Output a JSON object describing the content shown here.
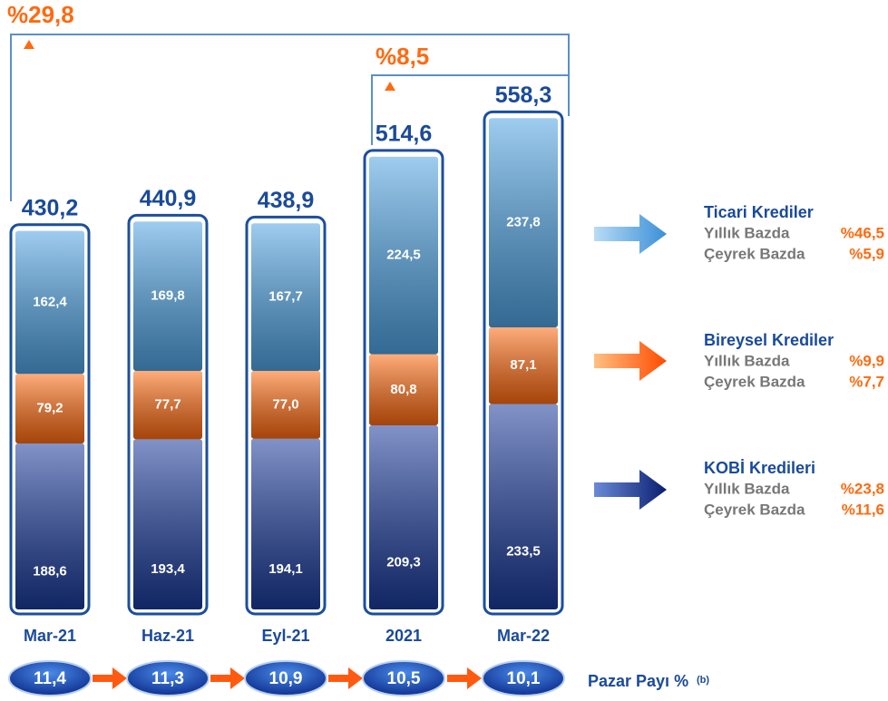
{
  "chart_data": {
    "type": "stacked_bar",
    "categories": [
      "Mar-21",
      "Haz-21",
      "Eyl-21",
      "2021",
      "Mar-22"
    ],
    "series": [
      {
        "name": "KOBİ Kredileri",
        "color": "#1a3a9a",
        "values": [
          188.6,
          193.4,
          194.1,
          209.3,
          233.5
        ],
        "value_labels": [
          "188,6",
          "193,4",
          "194,1",
          "209,3",
          "233,5"
        ],
        "annual": {
          "value": 23.8,
          "label": "%23,8"
        },
        "quarterly": {
          "value": 11.6,
          "label": "%11,6"
        }
      },
      {
        "name": "Bireysel Krediler",
        "color": "#ff6a10",
        "values": [
          79.2,
          77.7,
          77.0,
          80.8,
          87.1
        ],
        "value_labels": [
          "79,2",
          "77,7",
          "77,0",
          "80,8",
          "87,1"
        ],
        "annual": {
          "value": 9.9,
          "label": "%9,9"
        },
        "quarterly": {
          "value": 7.7,
          "label": "%7,7"
        }
      },
      {
        "name": "Ticari Krediler",
        "color": "#4fa3e3",
        "values": [
          162.4,
          169.8,
          167.7,
          224.5,
          237.8
        ],
        "value_labels": [
          "162,4",
          "169,8",
          "167,7",
          "224,5",
          "237,8"
        ],
        "annual": {
          "value": 46.5,
          "label": "%46,5"
        },
        "quarterly": {
          "value": 5.9,
          "label": "%5,9"
        }
      }
    ],
    "totals": [
      430.2,
      440.9,
      438.9,
      514.6,
      558.3
    ],
    "total_labels": [
      "430,2",
      "440,9",
      "438,9",
      "514,6",
      "558,3"
    ],
    "annual_label": "Yıllık Bazda",
    "quarterly_label": "Çeyrek Bazda",
    "growth": [
      {
        "value": 29.8,
        "label": "%29,8"
      },
      {
        "value": 8.5,
        "label": "%8,5"
      }
    ],
    "market_share": {
      "label": "Pazar Payı %",
      "note": "(b)",
      "values": [
        11.4,
        11.3,
        10.9,
        10.5,
        10.1
      ],
      "value_labels": [
        "11,4",
        "11,3",
        "10,9",
        "10,5",
        "10,1"
      ]
    }
  }
}
